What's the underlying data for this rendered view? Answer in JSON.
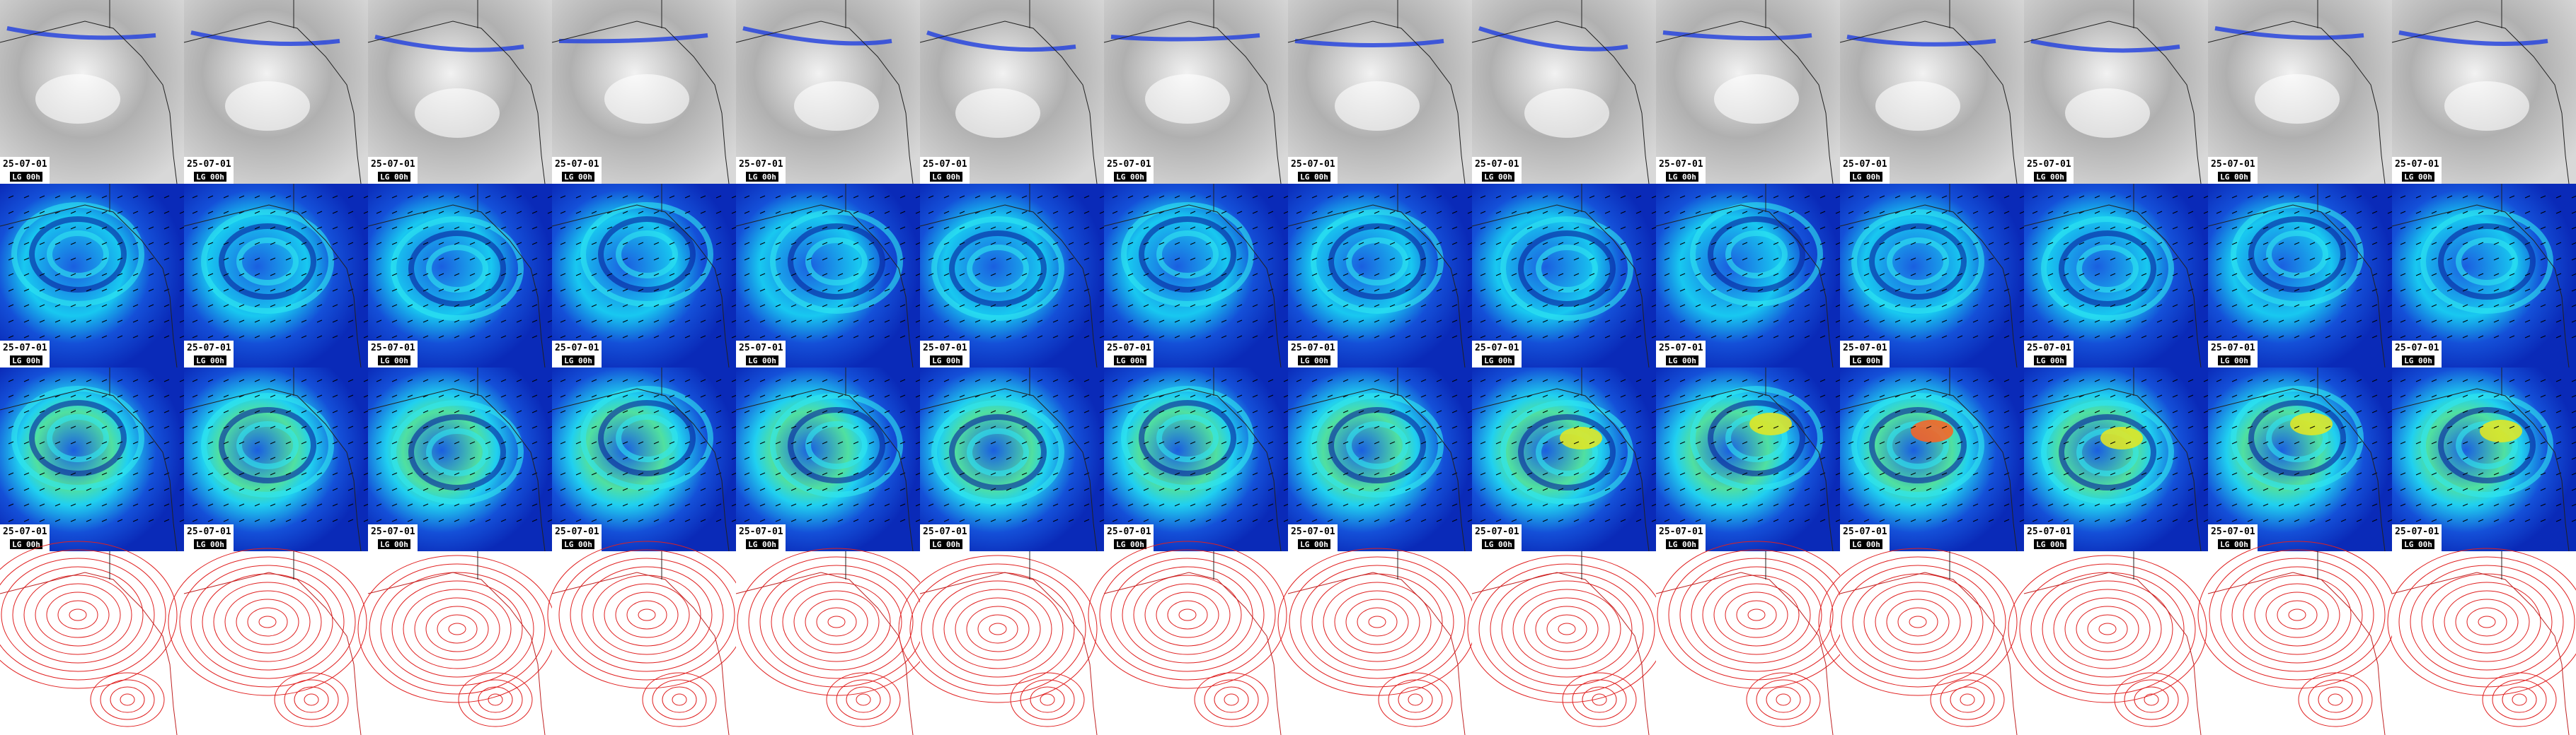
{
  "label_rows": [
    {
      "cells": [
        {
          "date": "25-07-01",
          "badge": "LG 00h"
        },
        {
          "date": "25-07-01",
          "badge": "LG 00h"
        },
        {
          "date": "25-07-01",
          "badge": "LG 00h"
        },
        {
          "date": "25-07-01",
          "badge": "LG 00h"
        },
        {
          "date": "25-07-01",
          "badge": "LG 00h"
        },
        {
          "date": "25-07-01",
          "badge": "LG 00h"
        },
        {
          "date": "25-07-01",
          "badge": "LG 00h"
        },
        {
          "date": "25-07-01",
          "badge": "LG 00h"
        },
        {
          "date": "25-07-01",
          "badge": "LG 00h"
        },
        {
          "date": "25-07-01",
          "badge": "LG 00h"
        },
        {
          "date": "25-07-01",
          "badge": "LG 00h"
        },
        {
          "date": "25-07-01",
          "badge": "LG 00h"
        },
        {
          "date": "25-07-01",
          "badge": "LG 00h"
        },
        {
          "date": "25-07-01",
          "badge": "LG 00h"
        }
      ]
    },
    {
      "cells": [
        {
          "date": "25-07-01",
          "badge": "LG 00h"
        },
        {
          "date": "25-07-01",
          "badge": "LG 00h"
        },
        {
          "date": "25-07-01",
          "badge": "LG 00h"
        },
        {
          "date": "25-07-01",
          "badge": "LG 00h"
        },
        {
          "date": "25-07-01",
          "badge": "LG 00h"
        },
        {
          "date": "25-07-01",
          "badge": "LG 00h"
        },
        {
          "date": "25-07-01",
          "badge": "LG 00h"
        },
        {
          "date": "25-07-01",
          "badge": "LG 00h"
        },
        {
          "date": "25-07-01",
          "badge": "LG 00h"
        },
        {
          "date": "25-07-01",
          "badge": "LG 00h"
        },
        {
          "date": "25-07-01",
          "badge": "LG 00h"
        },
        {
          "date": "25-07-01",
          "badge": "LG 00h"
        },
        {
          "date": "25-07-01",
          "badge": "LG 00h"
        },
        {
          "date": "25-07-01",
          "badge": "LG 00h"
        }
      ]
    },
    {
      "cells": [
        {
          "date": "25-07-01",
          "badge": "LG 00h"
        },
        {
          "date": "25-07-01",
          "badge": "LG 00h"
        },
        {
          "date": "25-07-01",
          "badge": "LG 00h"
        },
        {
          "date": "25-07-01",
          "badge": "LG 00h"
        },
        {
          "date": "25-07-01",
          "badge": "LG 00h"
        },
        {
          "date": "25-07-01",
          "badge": "LG 00h"
        },
        {
          "date": "25-07-01",
          "badge": "LG 00h"
        },
        {
          "date": "25-07-01",
          "badge": "LG 00h"
        },
        {
          "date": "25-07-01",
          "badge": "LG 00h"
        },
        {
          "date": "25-07-01",
          "badge": "LG 00h"
        },
        {
          "date": "25-07-01",
          "badge": "LG 00h"
        },
        {
          "date": "25-07-01",
          "badge": "LG 00h"
        },
        {
          "date": "25-07-01",
          "badge": "LG 00h"
        },
        {
          "date": "25-07-01",
          "badge": "LG 00h"
        }
      ]
    }
  ]
}
